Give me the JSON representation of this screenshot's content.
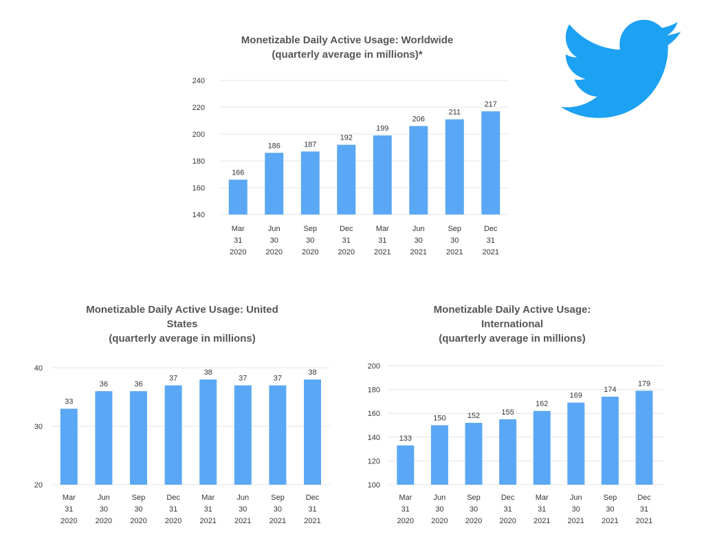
{
  "logo": {
    "icon": "twitter-bird-icon",
    "color": "#1DA1F2"
  },
  "colors": {
    "bar": "#5aa8f5",
    "grid": "#e4e4e4",
    "axis_text": "#333333",
    "title": "#555555"
  },
  "chart_data": [
    {
      "id": "worldwide",
      "type": "bar",
      "title_lines": [
        "Monetizable Daily Active Usage: Worldwide",
        "(quarterly average in millions)*"
      ],
      "categories": [
        [
          "Mar",
          "31",
          "2020"
        ],
        [
          "Jun",
          "30",
          "2020"
        ],
        [
          "Sep",
          "30",
          "2020"
        ],
        [
          "Dec",
          "31",
          "2020"
        ],
        [
          "Mar",
          "31",
          "2021"
        ],
        [
          "Jun",
          "30",
          "2021"
        ],
        [
          "Sep",
          "30",
          "2021"
        ],
        [
          "Dec",
          "31",
          "2021"
        ]
      ],
      "values": [
        166,
        186,
        187,
        192,
        199,
        206,
        211,
        217
      ],
      "ylim": [
        140,
        240
      ],
      "yticks": [
        140,
        160,
        180,
        200,
        220,
        240
      ],
      "grid": true,
      "xlabel": "",
      "ylabel": ""
    },
    {
      "id": "united-states",
      "type": "bar",
      "title_lines": [
        "Monetizable Daily Active Usage: United",
        "States",
        "(quarterly average in millions)"
      ],
      "categories": [
        [
          "Mar",
          "31",
          "2020"
        ],
        [
          "Jun",
          "30",
          "2020"
        ],
        [
          "Sep",
          "30",
          "2020"
        ],
        [
          "Dec",
          "31",
          "2020"
        ],
        [
          "Mar",
          "31",
          "2021"
        ],
        [
          "Jun",
          "30",
          "2021"
        ],
        [
          "Sep",
          "30",
          "2021"
        ],
        [
          "Dec",
          "31",
          "2021"
        ]
      ],
      "values": [
        33,
        36,
        36,
        37,
        38,
        37,
        37,
        38
      ],
      "ylim": [
        20,
        40
      ],
      "yticks": [
        20,
        30,
        40
      ],
      "grid": true,
      "xlabel": "",
      "ylabel": ""
    },
    {
      "id": "international",
      "type": "bar",
      "title_lines": [
        "Monetizable Daily Active Usage:",
        "International",
        "(quarterly average in millions)"
      ],
      "categories": [
        [
          "Mar",
          "31",
          "2020"
        ],
        [
          "Jun",
          "30",
          "2020"
        ],
        [
          "Sep",
          "30",
          "2020"
        ],
        [
          "Dec",
          "31",
          "2020"
        ],
        [
          "Mar",
          "31",
          "2021"
        ],
        [
          "Jun",
          "30",
          "2021"
        ],
        [
          "Sep",
          "30",
          "2021"
        ],
        [
          "Dec",
          "31",
          "2021"
        ]
      ],
      "values": [
        133,
        150,
        152,
        155,
        162,
        169,
        174,
        179
      ],
      "ylim": [
        100,
        200
      ],
      "yticks": [
        100,
        120,
        140,
        160,
        180,
        200
      ],
      "grid": true,
      "xlabel": "",
      "ylabel": ""
    }
  ]
}
